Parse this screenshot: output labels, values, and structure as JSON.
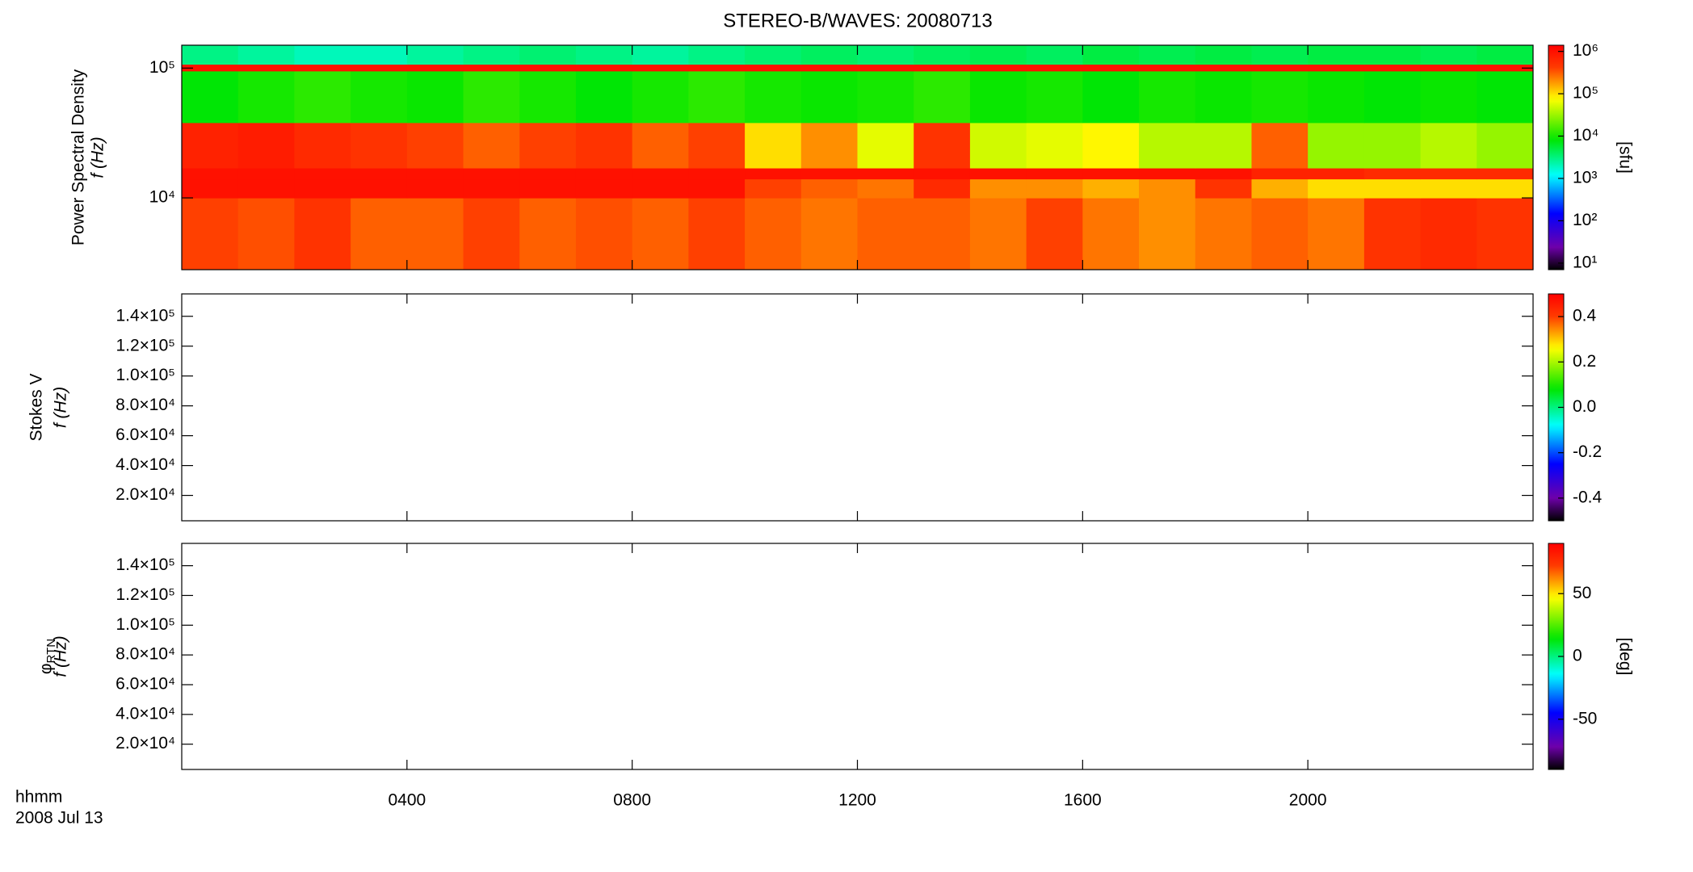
{
  "chart_data": [
    {
      "type": "heatmap",
      "title": "STEREO-B/WAVES: 20080713",
      "ylabel": "Power Spectral Density",
      "ylabel2": "f (Hz)",
      "ylog": true,
      "ylim": [
        2800,
        150000
      ],
      "yticks": [
        {
          "value": 10000,
          "label": "10⁴"
        },
        {
          "value": 100000,
          "label": "10⁵"
        }
      ],
      "zlog": true,
      "zlim": [
        7,
        1400000
      ],
      "zticks": [
        {
          "value": 10,
          "label": "10¹"
        },
        {
          "value": 100,
          "label": "10²"
        },
        {
          "value": 1000,
          "label": "10³"
        },
        {
          "value": 10000,
          "label": "10⁴"
        },
        {
          "value": 100000,
          "label": "10⁵"
        },
        {
          "value": 1000000,
          "label": "10⁶"
        }
      ],
      "zlabel": "[sfu]",
      "x_edges": [
        0,
        1,
        2,
        3,
        4,
        5,
        6,
        7,
        8,
        9,
        10,
        11,
        12,
        13,
        14,
        15,
        16,
        17,
        18,
        19,
        20,
        21,
        22,
        23,
        24
      ],
      "y_edges": [
        2800,
        10000,
        14000,
        17000,
        38000,
        95000,
        107000,
        150000
      ],
      "z": [
        [
          400000,
          350000,
          500000,
          300000,
          300000,
          400000,
          300000,
          350000,
          300000,
          400000,
          300000,
          250000,
          300000,
          300000,
          250000,
          400000,
          250000,
          200000,
          250000,
          300000,
          250000,
          500000,
          600000,
          500000
        ],
        [
          1000000,
          1000000,
          1000000,
          1000000,
          1000000,
          1000000,
          1000000,
          1000000,
          1000000,
          1000000,
          400000,
          300000,
          250000,
          600000,
          200000,
          200000,
          150000,
          200000,
          500000,
          150000,
          100000,
          100000,
          100000,
          100000
        ],
        [
          1000000,
          1000000,
          1000000,
          1000000,
          1000000,
          1000000,
          1000000,
          1000000,
          1000000,
          1000000,
          1000000,
          1000000,
          1000000,
          1000000,
          1000000,
          1000000,
          1000000,
          1000000,
          1000000,
          700000,
          700000,
          600000,
          600000,
          600000
        ],
        [
          700000,
          800000,
          600000,
          500000,
          400000,
          300000,
          400000,
          500000,
          300000,
          400000,
          100000,
          200000,
          60000,
          500000,
          50000,
          60000,
          80000,
          40000,
          40000,
          300000,
          30000,
          30000,
          40000,
          30000
        ],
        [
          8000,
          10000,
          12000,
          10000,
          9000,
          12000,
          10000,
          8000,
          10000,
          12000,
          10000,
          9000,
          10000,
          12000,
          9000,
          10000,
          8000,
          10000,
          9000,
          10000,
          9000,
          8000,
          9000,
          8000
        ],
        [
          1000000,
          1000000,
          1000000,
          1000000,
          1000000,
          1000000,
          1000000,
          1000000,
          1000000,
          1000000,
          1000000,
          1000000,
          1000000,
          1000000,
          1000000,
          1000000,
          1000000,
          1000000,
          1000000,
          1000000,
          1000000,
          1000000,
          1000000,
          1000000
        ],
        [
          3000,
          2500,
          2000,
          2000,
          2500,
          3000,
          3500,
          3000,
          2500,
          3000,
          3500,
          4000,
          3500,
          4000,
          4500,
          4000,
          5000,
          4500,
          5000,
          4500,
          5000,
          5000,
          4500,
          5000
        ]
      ]
    },
    {
      "type": "heatmap",
      "ylabel": "Stokes V",
      "ylabel2": "f (Hz)",
      "ylim": [
        3000,
        155000
      ],
      "yticks": [
        {
          "value": 20000,
          "label": "2.0×10⁴"
        },
        {
          "value": 40000,
          "label": "4.0×10⁴"
        },
        {
          "value": 60000,
          "label": "6.0×10⁴"
        },
        {
          "value": 80000,
          "label": "8.0×10⁴"
        },
        {
          "value": 100000,
          "label": "1.0×10⁵"
        },
        {
          "value": 120000,
          "label": "1.2×10⁵"
        },
        {
          "value": 140000,
          "label": "1.4×10⁵"
        }
      ],
      "zlim": [
        -0.5,
        0.5
      ],
      "zticks": [
        -0.4,
        -0.2,
        {
          "value": 0,
          "label": "0.0"
        },
        0.2,
        0.4
      ]
    },
    {
      "type": "heatmap",
      "ylabel": "φ",
      "ylabel_sub": "RTN",
      "ylabel2": "f (Hz)",
      "ylim": [
        3000,
        155000
      ],
      "yticks": [
        {
          "value": 20000,
          "label": "2.0×10⁴"
        },
        {
          "value": 40000,
          "label": "4.0×10⁴"
        },
        {
          "value": 60000,
          "label": "6.0×10⁴"
        },
        {
          "value": 80000,
          "label": "8.0×10⁴"
        },
        {
          "value": 100000,
          "label": "1.0×10⁵"
        },
        {
          "value": 120000,
          "label": "1.2×10⁵"
        },
        {
          "value": 140000,
          "label": "1.4×10⁵"
        }
      ],
      "zlim": [
        -90,
        90
      ],
      "zticks": [
        -50,
        0,
        50
      ],
      "zlabel": "[deg]",
      "xlim": [
        0,
        24
      ],
      "xticks": [
        {
          "value": 4,
          "label": "0400"
        },
        {
          "value": 8,
          "label": "0800"
        },
        {
          "value": 12,
          "label": "1200"
        },
        {
          "value": 16,
          "label": "1600"
        },
        {
          "value": 20,
          "label": "2000"
        }
      ],
      "xlabel": "hhmm",
      "date": "2008 Jul 13"
    }
  ]
}
